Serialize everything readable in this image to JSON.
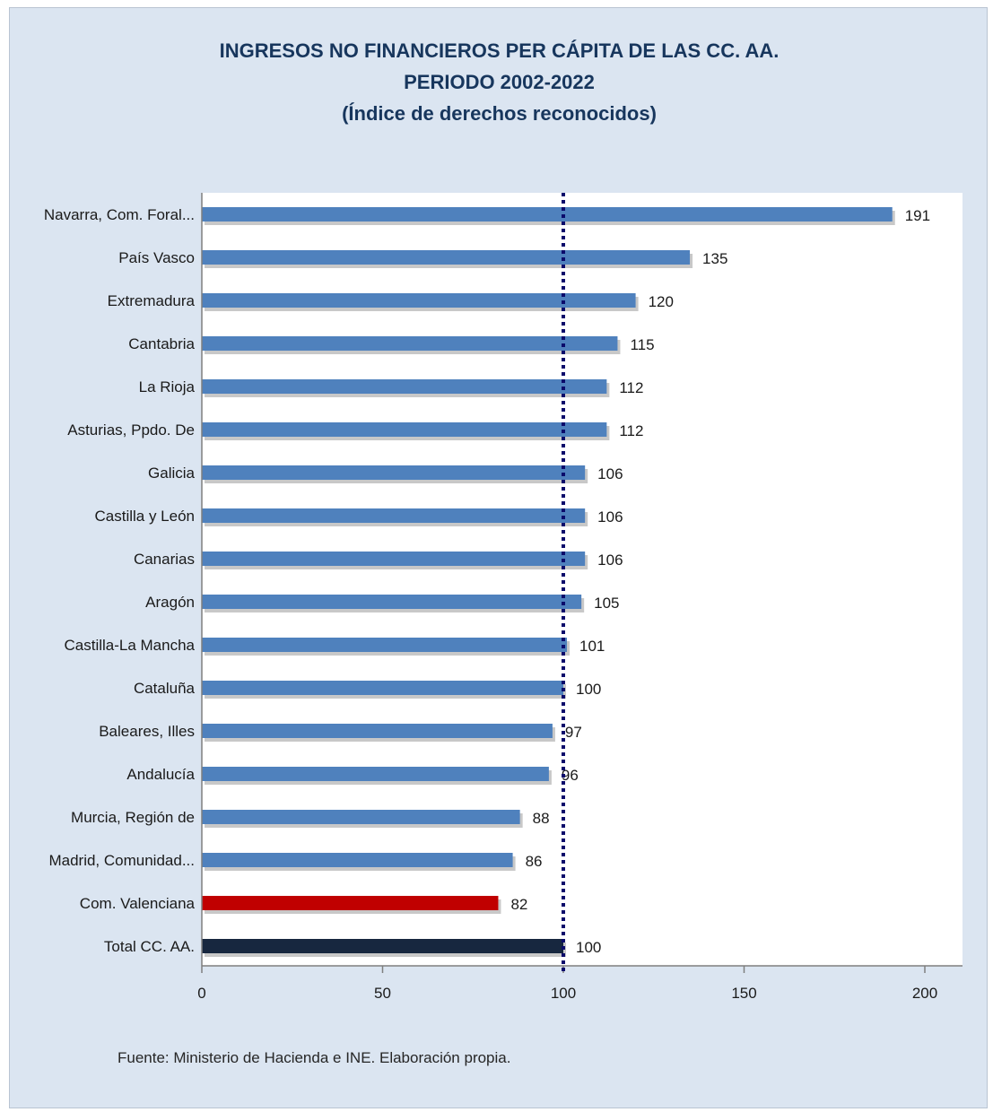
{
  "title_lines": [
    "INGRESOS NO FINANCIEROS PER CÁPITA DE LAS CC. AA.",
    "PERIODO 2002-2022",
    "(Índice de derechos reconocidos)"
  ],
  "source": "Fuente: Ministerio de Hacienda e INE. Elaboración propia.",
  "colors": {
    "bar": "#4f81bd",
    "highlight": "#c00000",
    "total": "#17273f",
    "reference": "#0b0b6b"
  },
  "chart_data": {
    "type": "bar",
    "orientation": "horizontal",
    "categories": [
      "Navarra, Com. Foral...",
      "País Vasco",
      "Extremadura",
      "Cantabria",
      "La Rioja",
      "Asturias, Ppdo. De",
      "Galicia",
      "Castilla y León",
      "Canarias",
      "Aragón",
      "Castilla-La Mancha",
      "Cataluña",
      "Baleares, Illes",
      "Andalucía",
      "Murcia, Región de",
      "Madrid, Comunidad...",
      "Com. Valenciana",
      "Total CC. AA."
    ],
    "values": [
      191,
      135,
      120,
      115,
      112,
      112,
      106,
      106,
      106,
      105,
      101,
      100,
      97,
      96,
      88,
      86,
      82,
      100
    ],
    "data_labels": [
      "191",
      "135",
      "120",
      "115",
      "112",
      "112",
      "106",
      "106",
      "106",
      "105",
      "101",
      "100",
      "97",
      "96",
      "88",
      "86",
      "82",
      "100"
    ],
    "highlight": {
      "Com. Valenciana": "highlight",
      "Total CC. AA.": "total"
    },
    "xlim": [
      0,
      200
    ],
    "xticks": [
      0,
      50,
      100,
      150,
      200
    ],
    "reference_line": 100,
    "xlabel": "",
    "ylabel": "",
    "grid": false,
    "legend": "none"
  }
}
